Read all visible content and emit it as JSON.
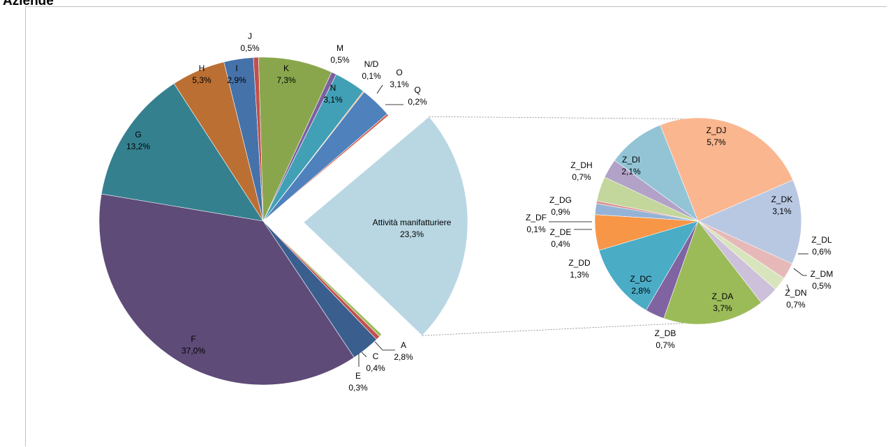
{
  "title": "Aziende",
  "chart_data": {
    "type": "pie",
    "subtype": "pie-of-pie",
    "title": "Aziende",
    "legend": "none",
    "main_pie": {
      "slices": [
        {
          "label": "A",
          "value_label": "2,8%",
          "value": 2.8,
          "color": "#3a5f8e"
        },
        {
          "label": "F",
          "value_label": "37,0%",
          "value": 37.0,
          "color": "#5e4b78"
        },
        {
          "label": "G",
          "value_label": "13,2%",
          "value": 13.2,
          "color": "#35808f"
        },
        {
          "label": "H",
          "value_label": "5,3%",
          "value": 5.3,
          "color": "#bb6f33"
        },
        {
          "label": "I",
          "value_label": "2,9%",
          "value": 2.9,
          "color": "#4672aa"
        },
        {
          "label": "J",
          "value_label": "0,5%",
          "value": 0.5,
          "color": "#c0504d"
        },
        {
          "label": "K",
          "value_label": "7,3%",
          "value": 7.3,
          "color": "#8aa64d"
        },
        {
          "label": "M",
          "value_label": "0,5%",
          "value": 0.5,
          "color": "#7c60a0"
        },
        {
          "label": "N",
          "value_label": "3,1%",
          "value": 3.1,
          "color": "#41a0b5"
        },
        {
          "label": "N/D",
          "value_label": "0,1%",
          "value": 0.1,
          "color": "#f59d56"
        },
        {
          "label": "O",
          "value_label": "3,1%",
          "value": 3.1,
          "color": "#4f81bd"
        },
        {
          "label": "Q",
          "value_label": "0,2%",
          "value": 0.2,
          "color": "#d05a4a"
        },
        {
          "label": "Attività manifatturiere",
          "value_label": "23,3%",
          "value": 23.3,
          "color": "#b9d7e3",
          "exploded": true
        },
        {
          "label": "E",
          "value_label": "0,3%",
          "value": 0.3,
          "color": "#9bbb59"
        },
        {
          "label": "C",
          "value_label": "0,4%",
          "value": 0.4,
          "color": "#c0504d"
        }
      ]
    },
    "secondary_pie": {
      "slices": [
        {
          "label": "Z_DA",
          "value_label": "3,7%",
          "value": 3.7,
          "color": "#9bbb59"
        },
        {
          "label": "Z_DB",
          "value_label": "0,7%",
          "value": 0.7,
          "color": "#8064a2"
        },
        {
          "label": "Z_DC",
          "value_label": "2,8%",
          "value": 2.8,
          "color": "#4bacc6"
        },
        {
          "label": "Z_DD",
          "value_label": "1,3%",
          "value": 1.3,
          "color": "#f79646"
        },
        {
          "label": "Z_DE",
          "value_label": "0,4%",
          "value": 0.4,
          "color": "#95b3d7"
        },
        {
          "label": "Z_DF",
          "value_label": "0,1%",
          "value": 0.1,
          "color": "#d99694"
        },
        {
          "label": "Z_DG",
          "value_label": "0,9%",
          "value": 0.9,
          "color": "#c3d69b"
        },
        {
          "label": "Z_DH",
          "value_label": "0,7%",
          "value": 0.7,
          "color": "#b2a2c7"
        },
        {
          "label": "Z_DI",
          "value_label": "2,1%",
          "value": 2.1,
          "color": "#93c4d6"
        },
        {
          "label": "Z_DJ",
          "value_label": "5,7%",
          "value": 5.7,
          "color": "#fab68f"
        },
        {
          "label": "Z_DK",
          "value_label": "3,1%",
          "value": 3.1,
          "color": "#b9c8e2"
        },
        {
          "label": "Z_DL",
          "value_label": "0,6%",
          "value": 0.6,
          "color": "#e6b9b8"
        },
        {
          "label": "Z_DM",
          "value_label": "0,5%",
          "value": 0.5,
          "color": "#d8e4bc"
        },
        {
          "label": "Z_DN",
          "value_label": "0,7%",
          "value": 0.7,
          "color": "#ccc0da"
        }
      ]
    }
  }
}
